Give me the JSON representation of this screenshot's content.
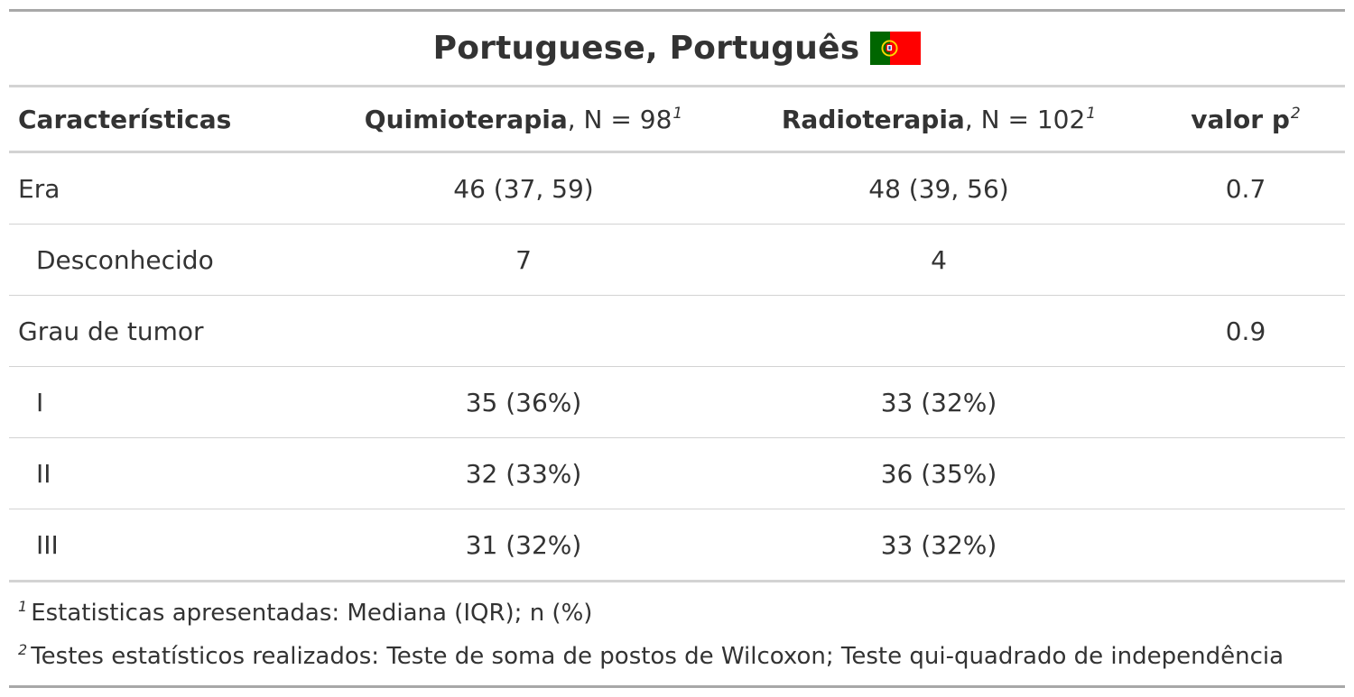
{
  "title": {
    "text": "Portuguese, Português",
    "flag_icon": "portugal-flag-icon",
    "flag_colors": {
      "green": "#006600",
      "red": "#ff0000",
      "emblem": "#ffd700"
    }
  },
  "header": {
    "col1": {
      "label": "Características"
    },
    "col2": {
      "label": "Quimioterapia",
      "n_text": ", N = 98",
      "sup": "1"
    },
    "col3": {
      "label": "Radioterapia",
      "n_text": ", N = 102",
      "sup": "1"
    },
    "col4": {
      "label": "valor p",
      "sup": "2"
    }
  },
  "rows": [
    {
      "label": "Era",
      "quimio": "46 (37, 59)",
      "radio": "48 (39, 56)",
      "p": "0.7"
    },
    {
      "label": "Desconhecido",
      "quimio": "7",
      "radio": "4",
      "p": ""
    },
    {
      "label": "Grau de tumor",
      "quimio": "",
      "radio": "",
      "p": "0.9"
    },
    {
      "label": "I",
      "quimio": "35 (36%)",
      "radio": "33 (32%)",
      "p": ""
    },
    {
      "label": "II",
      "quimio": "32 (33%)",
      "radio": "36 (35%)",
      "p": ""
    },
    {
      "label": "III",
      "quimio": "31 (32%)",
      "radio": "33 (32%)",
      "p": ""
    }
  ],
  "footnotes": [
    {
      "mark": "1",
      "text": "Estatisticas apresentadas: Mediana (IQR); n (%)"
    },
    {
      "mark": "2",
      "text": "Testes estatísticos realizados: Teste de soma de postos de Wilcoxon; Teste qui-quadrado de independência"
    }
  ],
  "colors": {
    "text": "#333333",
    "rule_dark": "#a8a8a8",
    "rule_light": "#d3d3d3"
  }
}
